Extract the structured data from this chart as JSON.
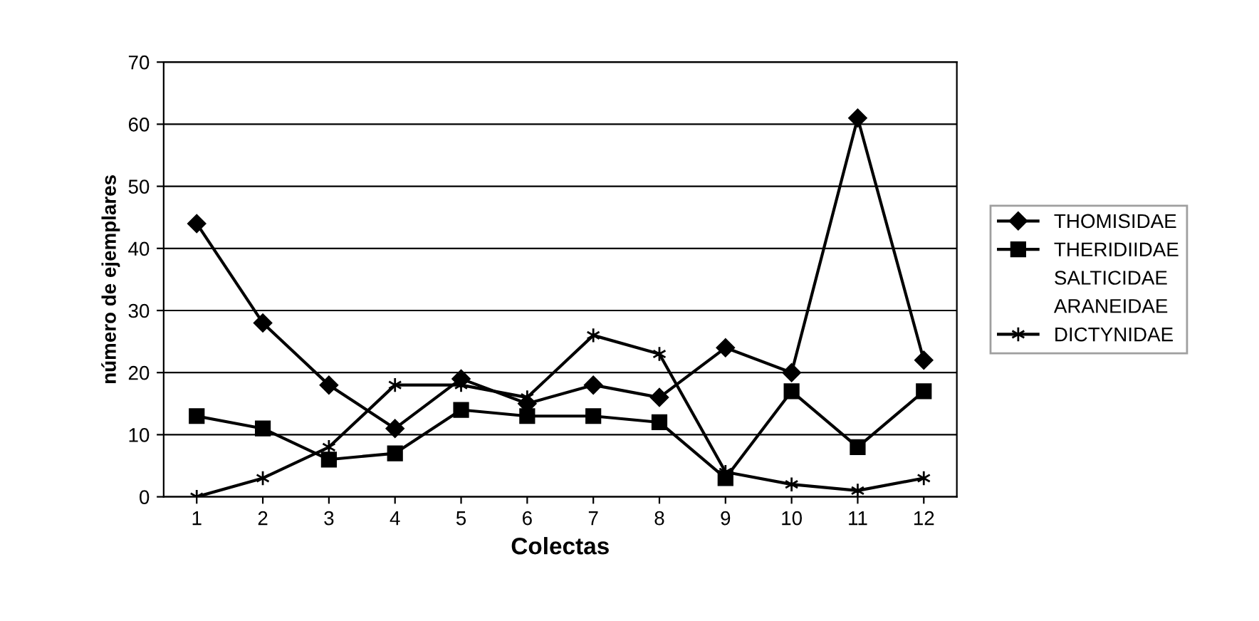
{
  "chart_data": {
    "type": "line",
    "xlabel": "Colectas",
    "ylabel": "número de ejemplares",
    "categories": [
      "1",
      "2",
      "3",
      "4",
      "5",
      "6",
      "7",
      "8",
      "9",
      "10",
      "11",
      "12"
    ],
    "series": [
      {
        "name": "THOMISIDAE",
        "color": "#000000",
        "marker": "diamond",
        "values": [
          44,
          28,
          18,
          11,
          19,
          15,
          18,
          16,
          24,
          20,
          61,
          22
        ]
      },
      {
        "name": "THERIDIIDAE",
        "color": "#000000",
        "marker": "square",
        "values": [
          13,
          11,
          6,
          7,
          14,
          13,
          13,
          12,
          3,
          17,
          8,
          17
        ]
      },
      {
        "name": "SALTICIDAE",
        "values": [
          null,
          null,
          null,
          null,
          null,
          null,
          null,
          null,
          null,
          null,
          null,
          null
        ]
      },
      {
        "name": "ARANEIDAE",
        "values": [
          null,
          null,
          null,
          null,
          null,
          null,
          null,
          null,
          null,
          null,
          null,
          null
        ]
      },
      {
        "name": "DICTYNIDAE",
        "color": "#000000",
        "marker": "cross",
        "values": [
          0,
          3,
          8,
          18,
          18,
          16,
          26,
          23,
          4,
          2,
          1,
          3
        ]
      }
    ],
    "ylim": [
      0,
      70
    ],
    "yticks": [
      0,
      10,
      20,
      30,
      40,
      50,
      60,
      70
    ],
    "grid": "y",
    "legend": "right"
  }
}
